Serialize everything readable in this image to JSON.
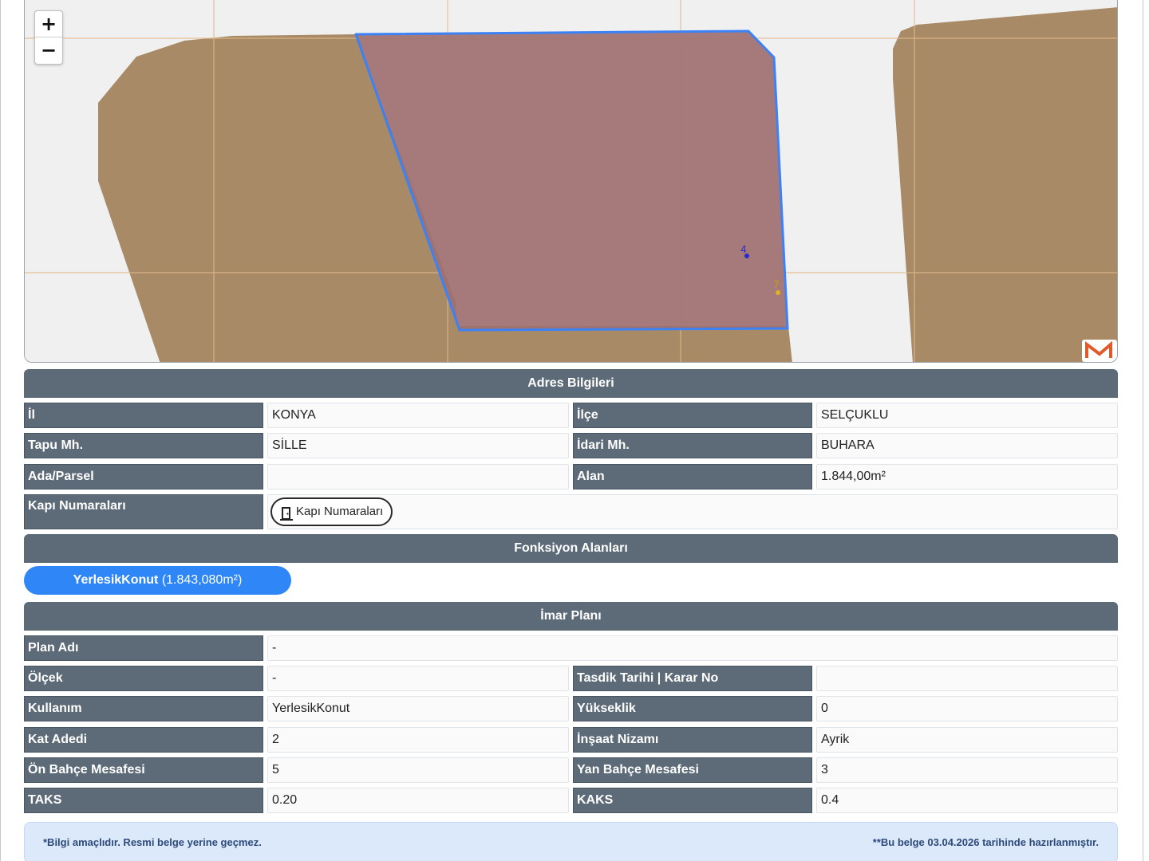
{
  "map": {
    "zoom_in": "+",
    "zoom_out": "−",
    "markers": [
      {
        "label": "4",
        "color": "#2a2acc"
      },
      {
        "label": "7",
        "color": "#e0b020"
      }
    ],
    "colors": {
      "background": "#f0f0f0",
      "parcel_fill": "#a88a66",
      "selected_fill": "#a07070",
      "selected_stroke": "#3b82f6",
      "grid_line": "#e2b98a"
    },
    "logo_icon": "m-logo-icon"
  },
  "address": {
    "header": "Adres Bilgileri",
    "il_label": "İl",
    "il_value": "KONYA",
    "ilce_label": "İlçe",
    "ilce_value": "SELÇUKLU",
    "tapu_label": "Tapu Mh.",
    "tapu_value": "SİLLE",
    "idari_label": "İdari Mh.",
    "idari_value": "BUHARA",
    "ada_label": "Ada/Parsel",
    "ada_value": "",
    "alan_label": "Alan",
    "alan_value": "1.844,00m²",
    "kapi_label": "Kapı Numaraları",
    "kapi_button": "Kapı Numaraları",
    "kapi_icon": "door-icon"
  },
  "fonksiyon": {
    "header": "Fonksiyon Alanları",
    "pill_name": "YerlesikKonut",
    "pill_area": " (1.843,080m²)",
    "pill_color": "#2f86f6"
  },
  "imar": {
    "header": "İmar Planı",
    "plan_adi_label": "Plan Adı",
    "plan_adi_value": "-",
    "olcek_label": "Ölçek",
    "olcek_value": "-",
    "tasdik_label": "Tasdik Tarihi | Karar No",
    "tasdik_value": "",
    "kullanim_label": "Kullanım",
    "kullanim_value": "YerlesikKonut",
    "yukseklik_label": "Yükseklik",
    "yukseklik_value": "0",
    "kat_label": "Kat Adedi",
    "kat_value": "2",
    "insaat_label": "İnşaat Nizamı",
    "insaat_value": "Ayrik",
    "on_bahce_label": "Ön Bahçe Mesafesi",
    "on_bahce_value": "5",
    "yan_bahce_label": "Yan Bahçe Mesafesi",
    "yan_bahce_value": "3",
    "taks_label": "TAKS",
    "taks_value": "0.20",
    "kaks_label": "KAKS",
    "kaks_value": "0.4"
  },
  "footer": {
    "left": "*Bilgi amaçlıdır. Resmi belge yerine geçmez.",
    "right": "**Bu belge 03.04.2026 tarihinde hazırlanmıştır."
  }
}
